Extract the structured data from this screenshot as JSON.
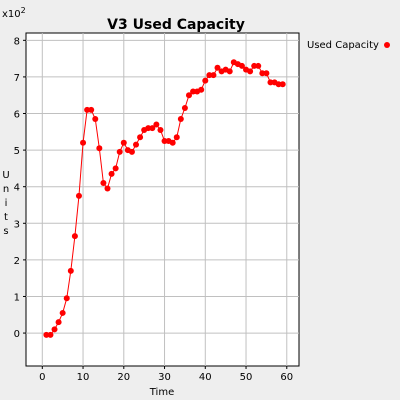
{
  "chart_data": {
    "type": "line",
    "title": "V3 Used Capacity",
    "xlabel": "Time",
    "ylabel": "Units",
    "y_multiplier": "x10",
    "y_multiplier_exp": "2",
    "xlim": [
      -4,
      63
    ],
    "ylim": [
      -0.9,
      8.2
    ],
    "xticks": [
      0,
      10,
      20,
      30,
      40,
      50,
      60
    ],
    "yticks": [
      0,
      1,
      2,
      3,
      4,
      5,
      6,
      7,
      8
    ],
    "grid": true,
    "legend_placement": "right",
    "series": [
      {
        "name": "Used Capacity",
        "color": "#ff0000",
        "x": [
          1,
          2,
          3,
          4,
          5,
          6,
          7,
          8,
          9,
          10,
          11,
          12,
          13,
          14,
          15,
          16,
          17,
          18,
          19,
          20,
          21,
          22,
          23,
          24,
          25,
          26,
          27,
          28,
          29,
          30,
          31,
          32,
          33,
          34,
          35,
          36,
          37,
          38,
          39,
          40,
          41,
          42,
          43,
          44,
          45,
          46,
          47,
          48,
          49,
          50,
          51,
          52,
          53,
          54,
          55,
          56,
          57,
          58,
          59
        ],
        "y": [
          -0.05,
          -0.05,
          0.1,
          0.3,
          0.55,
          0.95,
          1.7,
          2.65,
          3.75,
          5.2,
          6.1,
          6.1,
          5.85,
          5.05,
          4.1,
          3.95,
          4.35,
          4.5,
          4.95,
          5.2,
          5.0,
          4.95,
          5.15,
          5.35,
          5.55,
          5.6,
          5.6,
          5.7,
          5.55,
          5.25,
          5.25,
          5.2,
          5.35,
          5.85,
          6.15,
          6.5,
          6.6,
          6.6,
          6.65,
          6.9,
          7.05,
          7.05,
          7.25,
          7.15,
          7.2,
          7.15,
          7.4,
          7.35,
          7.3,
          7.2,
          7.15,
          7.3,
          7.3,
          7.1,
          7.1,
          6.85,
          6.85,
          6.8,
          6.8
        ]
      }
    ]
  }
}
